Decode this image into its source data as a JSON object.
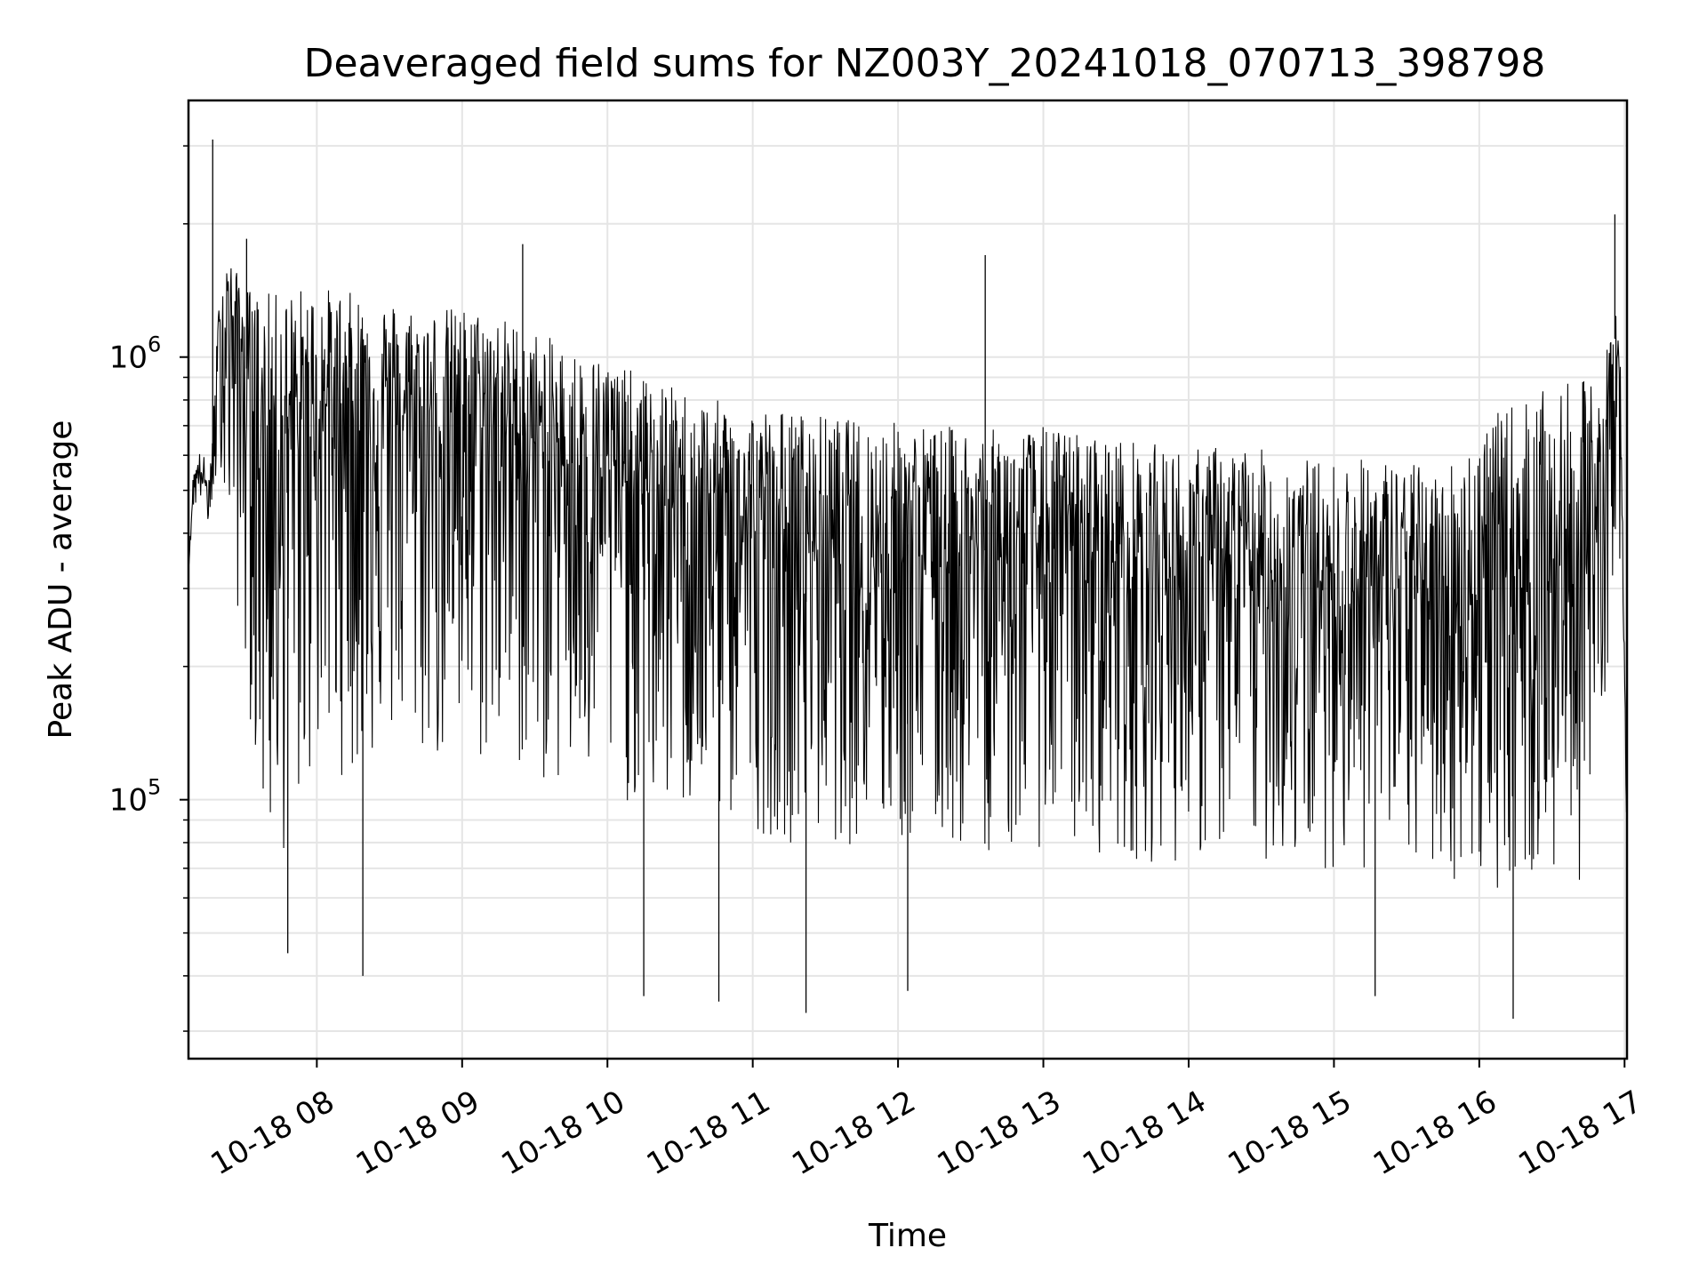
{
  "chart_data": {
    "type": "line",
    "title": "Deaveraged field sums for NZ003Y_20241018_070713_398798",
    "xlabel": "Time",
    "ylabel": "Peak ADU - average",
    "yscale": "log",
    "ylim": [
      26000,
      3800000
    ],
    "xlim": [
      "2024-10-18 07:07",
      "2024-10-18 17:01"
    ],
    "grid": true,
    "line_color": "#000000",
    "grid_color": "#e5e5e5",
    "x_ticks": [
      {
        "t": "2024-10-18 08:00",
        "label": "10-18 08"
      },
      {
        "t": "2024-10-18 09:00",
        "label": "10-18 09"
      },
      {
        "t": "2024-10-18 10:00",
        "label": "10-18 10"
      },
      {
        "t": "2024-10-18 11:00",
        "label": "10-18 11"
      },
      {
        "t": "2024-10-18 12:00",
        "label": "10-18 12"
      },
      {
        "t": "2024-10-18 13:00",
        "label": "10-18 13"
      },
      {
        "t": "2024-10-18 14:00",
        "label": "10-18 14"
      },
      {
        "t": "2024-10-18 15:00",
        "label": "10-18 15"
      },
      {
        "t": "2024-10-18 16:00",
        "label": "10-18 16"
      },
      {
        "t": "2024-10-18 17:00",
        "label": "10-18 17"
      }
    ],
    "y_ticks": [
      {
        "value": 100000,
        "base": "10",
        "exp": "5"
      },
      {
        "value": 1000000,
        "base": "10",
        "exp": "6"
      }
    ],
    "series": [
      {
        "x": [
          "2024-10-18 07:07",
          "2024-10-18 07:09",
          "2024-10-18 07:12",
          "2024-10-18 07:16",
          "2024-10-18 07:20",
          "2024-10-18 07:23",
          "2024-10-18 07:30",
          "2024-10-18 07:38",
          "2024-10-18 07:45",
          "2024-10-18 07:52",
          "2024-10-18 08:00",
          "2024-10-18 08:15",
          "2024-10-18 08:30",
          "2024-10-18 08:45",
          "2024-10-18 09:00",
          "2024-10-18 09:15",
          "2024-10-18 09:30",
          "2024-10-18 09:45",
          "2024-10-18 10:00",
          "2024-10-18 10:15",
          "2024-10-18 10:30",
          "2024-10-18 10:45",
          "2024-10-18 11:00",
          "2024-10-18 11:15",
          "2024-10-18 11:30",
          "2024-10-18 11:45",
          "2024-10-18 12:00",
          "2024-10-18 12:15",
          "2024-10-18 12:30",
          "2024-10-18 12:45",
          "2024-10-18 13:00",
          "2024-10-18 13:15",
          "2024-10-18 13:30",
          "2024-10-18 13:45",
          "2024-10-18 14:00",
          "2024-10-18 14:15",
          "2024-10-18 14:30",
          "2024-10-18 14:45",
          "2024-10-18 15:00",
          "2024-10-18 15:15",
          "2024-10-18 15:30",
          "2024-10-18 15:45",
          "2024-10-18 16:00",
          "2024-10-18 16:15",
          "2024-10-18 16:30",
          "2024-10-18 16:45",
          "2024-10-18 16:52",
          "2024-10-18 16:56",
          "2024-10-18 16:58",
          "2024-10-18 17:00",
          "2024-10-18 17:01"
        ],
        "y": [
          330000,
          520000,
          560000,
          470000,
          1100000,
          1300000,
          1000000,
          620000,
          720000,
          650000,
          780000,
          800000,
          780000,
          700000,
          750000,
          720000,
          640000,
          580000,
          560000,
          500000,
          450000,
          420000,
          410000,
          390000,
          390000,
          380000,
          380000,
          370000,
          370000,
          360000,
          380000,
          360000,
          350000,
          330000,
          320000,
          330000,
          320000,
          310000,
          300000,
          310000,
          300000,
          290000,
          290000,
          320000,
          320000,
          340000,
          600000,
          1100000,
          900000,
          170000,
          90000
        ],
        "y_low": [
          330000,
          450000,
          470000,
          400000,
          600000,
          400000,
          200000,
          80000,
          70000,
          90000,
          120000,
          110000,
          130000,
          120000,
          110000,
          120000,
          110000,
          100000,
          100000,
          95000,
          90000,
          88000,
          85000,
          80000,
          80000,
          78000,
          78000,
          76000,
          76000,
          75000,
          78000,
          76000,
          74000,
          72000,
          72000,
          74000,
          72000,
          70000,
          70000,
          68000,
          68000,
          66000,
          62000,
          64000,
          64000,
          66000,
          150000,
          400000,
          300000,
          150000,
          80000
        ],
        "y_high": [
          330000,
          560000,
          620000,
          560000,
          1500000,
          1700000,
          1450000,
          1400000,
          1400000,
          1450000,
          1450000,
          1400000,
          1350000,
          1300000,
          1300000,
          1250000,
          1150000,
          1050000,
          1000000,
          900000,
          850000,
          800000,
          780000,
          760000,
          740000,
          720000,
          720000,
          700000,
          700000,
          680000,
          700000,
          680000,
          660000,
          640000,
          620000,
          640000,
          620000,
          600000,
          580000,
          600000,
          580000,
          560000,
          700000,
          800000,
          850000,
          900000,
          1000000,
          1300000,
          1200000,
          220000,
          100000
        ],
        "spikes": [
          {
            "x": "2024-10-18 07:17",
            "y": 3100000
          },
          {
            "x": "2024-10-18 07:31",
            "y": 1850000
          },
          {
            "x": "2024-10-18 07:48",
            "y": 45000
          },
          {
            "x": "2024-10-18 08:19",
            "y": 40000
          },
          {
            "x": "2024-10-18 09:25",
            "y": 1800000
          },
          {
            "x": "2024-10-18 10:15",
            "y": 36000
          },
          {
            "x": "2024-10-18 10:46",
            "y": 35000
          },
          {
            "x": "2024-10-18 11:22",
            "y": 33000
          },
          {
            "x": "2024-10-18 12:04",
            "y": 37000
          },
          {
            "x": "2024-10-18 12:36",
            "y": 1700000
          },
          {
            "x": "2024-10-18 15:17",
            "y": 36000
          },
          {
            "x": "2024-10-18 16:14",
            "y": 32000
          },
          {
            "x": "2024-10-18 16:56",
            "y": 2100000
          }
        ]
      }
    ]
  }
}
